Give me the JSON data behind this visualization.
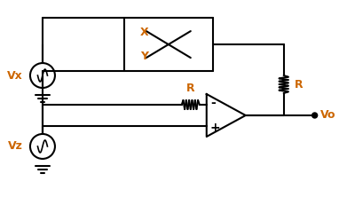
{
  "background_color": "#ffffff",
  "line_color": "#000000",
  "label_color_orange": "#cc6600",
  "label_color_black": "#000000",
  "figsize": [
    3.82,
    2.4
  ],
  "dpi": 100,
  "labels": {
    "Vx": "Vx",
    "Vz": "Vz",
    "Vo": "Vo",
    "X": "X",
    "Y": "Y",
    "R_top": "R",
    "R_mid": "R",
    "minus": "-",
    "plus": "+"
  }
}
